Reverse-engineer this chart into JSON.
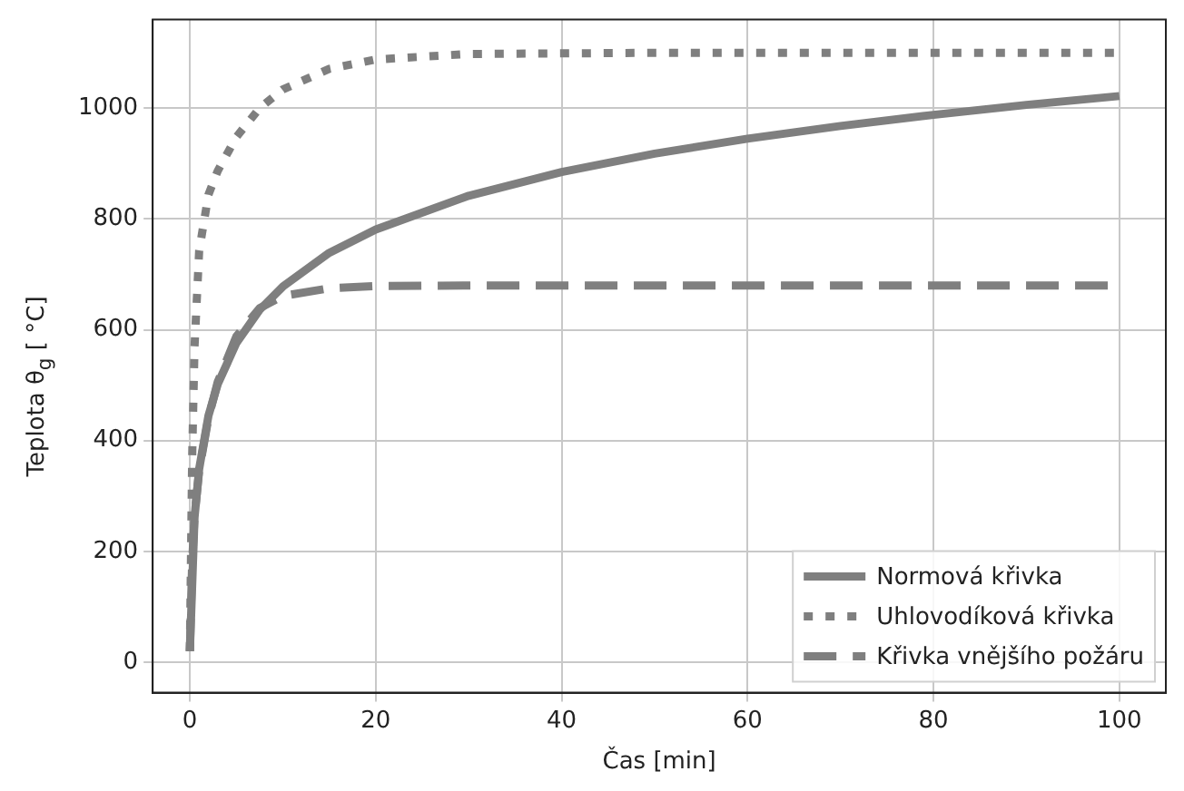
{
  "chart_data": {
    "type": "line",
    "xlabel": "Čas [min]",
    "ylabel": "Teplota θ$_{g}$ [ °C]",
    "xlim": [
      -4,
      105
    ],
    "ylim": [
      -55,
      1160
    ],
    "xticks": [
      0,
      20,
      40,
      60,
      80,
      100
    ],
    "yticks": [
      0,
      200,
      400,
      600,
      800,
      1000
    ],
    "grid": true,
    "legend": "bottom right",
    "marker": "none",
    "series": [
      {
        "name": "Normová křivka",
        "color": "#7f7f7f",
        "line_style": "solid",
        "x": [
          0,
          0.5,
          1,
          2,
          3,
          5,
          7.5,
          10,
          15,
          20,
          30,
          40,
          50,
          60,
          70,
          80,
          90,
          100
        ],
        "values": [
          20,
          261,
          349,
          445,
          502,
          576,
          636,
          678,
          739,
          781,
          842,
          885,
          918,
          945,
          968,
          988,
          1006,
          1022
        ]
      },
      {
        "name": "Uhlovodíková křivka",
        "color": "#7f7f7f",
        "line_style": "dotted",
        "x": [
          0,
          0.25,
          0.5,
          1,
          2,
          3,
          5,
          7.5,
          10,
          15,
          20,
          30,
          50,
          100
        ],
        "values": [
          20,
          373,
          569,
          743,
          844,
          887,
          948,
          1000,
          1034,
          1071,
          1088,
          1098,
          1100,
          1100
        ]
      },
      {
        "name": "Křivka vnějšího požáru",
        "color": "#7f7f7f",
        "line_style": "dashed",
        "x": [
          0,
          0.25,
          0.5,
          1,
          2,
          3,
          5,
          7.5,
          10,
          15,
          20,
          30,
          100
        ],
        "values": [
          20,
          182,
          263,
          346,
          441,
          506,
          588,
          639,
          661,
          675,
          679,
          680,
          680
        ]
      }
    ]
  }
}
